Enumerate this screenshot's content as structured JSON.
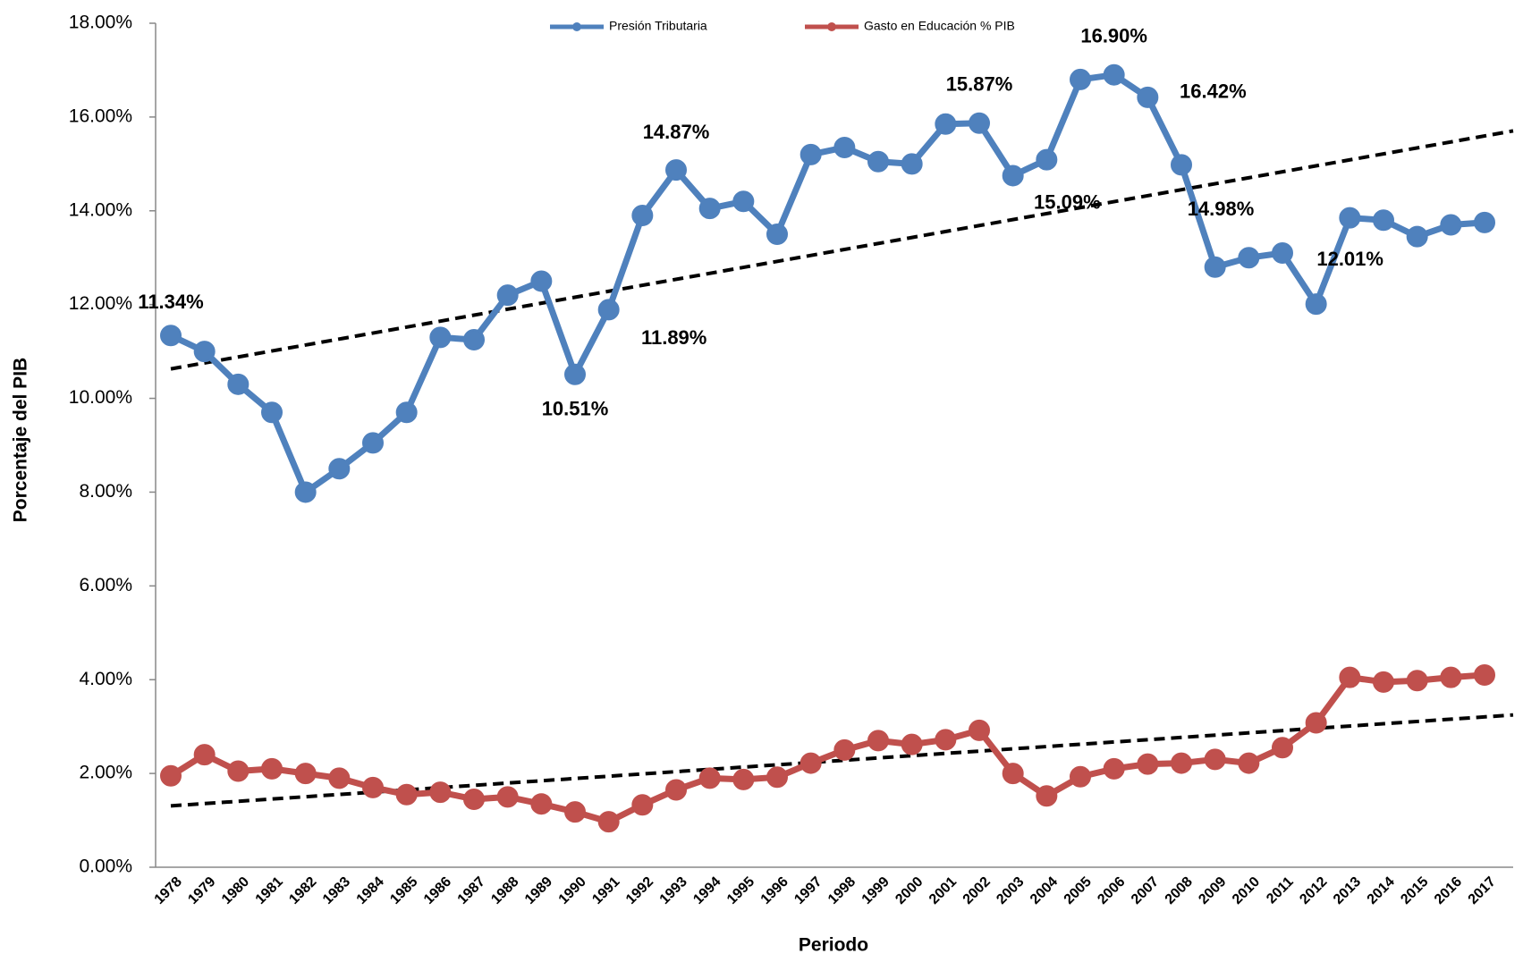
{
  "chart_data": {
    "type": "line",
    "y_label": "Porcentaje del PIB",
    "x_label": "Periodo",
    "categories": [
      "1978",
      "1979",
      "1980",
      "1981",
      "1982",
      "1983",
      "1984",
      "1985",
      "1986",
      "1987",
      "1988",
      "1989",
      "1990",
      "1991",
      "1992",
      "1993",
      "1994",
      "1995",
      "1996",
      "1997",
      "1998",
      "1999",
      "2000",
      "2001",
      "2002",
      "2003",
      "2004",
      "2005",
      "2006",
      "2007",
      "2008",
      "2009",
      "2010",
      "2011",
      "2012",
      "2013",
      "2014",
      "2015",
      "2016",
      "2017"
    ],
    "series": [
      {
        "name": "Presión Tributaria",
        "color": "#4f81bd",
        "values": [
          11.34,
          11.0,
          10.3,
          9.7,
          8.0,
          8.5,
          9.05,
          9.7,
          11.3,
          11.25,
          12.2,
          12.5,
          10.51,
          11.89,
          13.9,
          14.87,
          14.05,
          14.2,
          13.5,
          15.2,
          15.35,
          15.05,
          15.0,
          15.85,
          15.87,
          14.75,
          15.09,
          16.8,
          16.9,
          16.42,
          14.98,
          12.8,
          13.0,
          13.1,
          12.01,
          13.85,
          13.8,
          13.45,
          13.7,
          13.75
        ],
        "value_labels": [
          "11.34%",
          null,
          null,
          null,
          null,
          null,
          null,
          null,
          null,
          null,
          null,
          null,
          "10.51%",
          "11.89%",
          null,
          "14.87%",
          null,
          null,
          null,
          null,
          null,
          null,
          null,
          null,
          "15.87%",
          null,
          "15.09%",
          null,
          "16.90%",
          "16.42%",
          "14.98%",
          null,
          null,
          null,
          "12.01%",
          null,
          null,
          null,
          null,
          null
        ],
        "trendline": true
      },
      {
        "name": "Gasto en Educación % PIB",
        "color": "#c0504d",
        "values": [
          1.95,
          2.4,
          2.05,
          2.1,
          2.0,
          1.9,
          1.7,
          1.55,
          1.6,
          1.45,
          1.5,
          1.35,
          1.18,
          0.97,
          1.33,
          1.65,
          1.9,
          1.87,
          1.92,
          2.22,
          2.5,
          2.7,
          2.62,
          2.72,
          2.92,
          2.0,
          1.52,
          1.93,
          2.1,
          2.2,
          2.22,
          2.3,
          2.22,
          2.55,
          3.08,
          4.05,
          3.95,
          3.98,
          4.05,
          4.1
        ],
        "trendline": true
      }
    ],
    "ylim": [
      0,
      18
    ],
    "yticks": [
      {
        "value": 0,
        "label": "0.00%"
      },
      {
        "value": 2,
        "label": "2.00%"
      },
      {
        "value": 4,
        "label": "4.00%"
      },
      {
        "value": 6,
        "label": "6.00%"
      },
      {
        "value": 8,
        "label": "8.00%"
      },
      {
        "value": 10,
        "label": "10.00%"
      },
      {
        "value": 12,
        "label": "12.00%"
      },
      {
        "value": 14,
        "label": "14.00%"
      },
      {
        "value": 16,
        "label": "16.00%"
      },
      {
        "value": 18,
        "label": "18.00%"
      }
    ],
    "grid": false
  }
}
